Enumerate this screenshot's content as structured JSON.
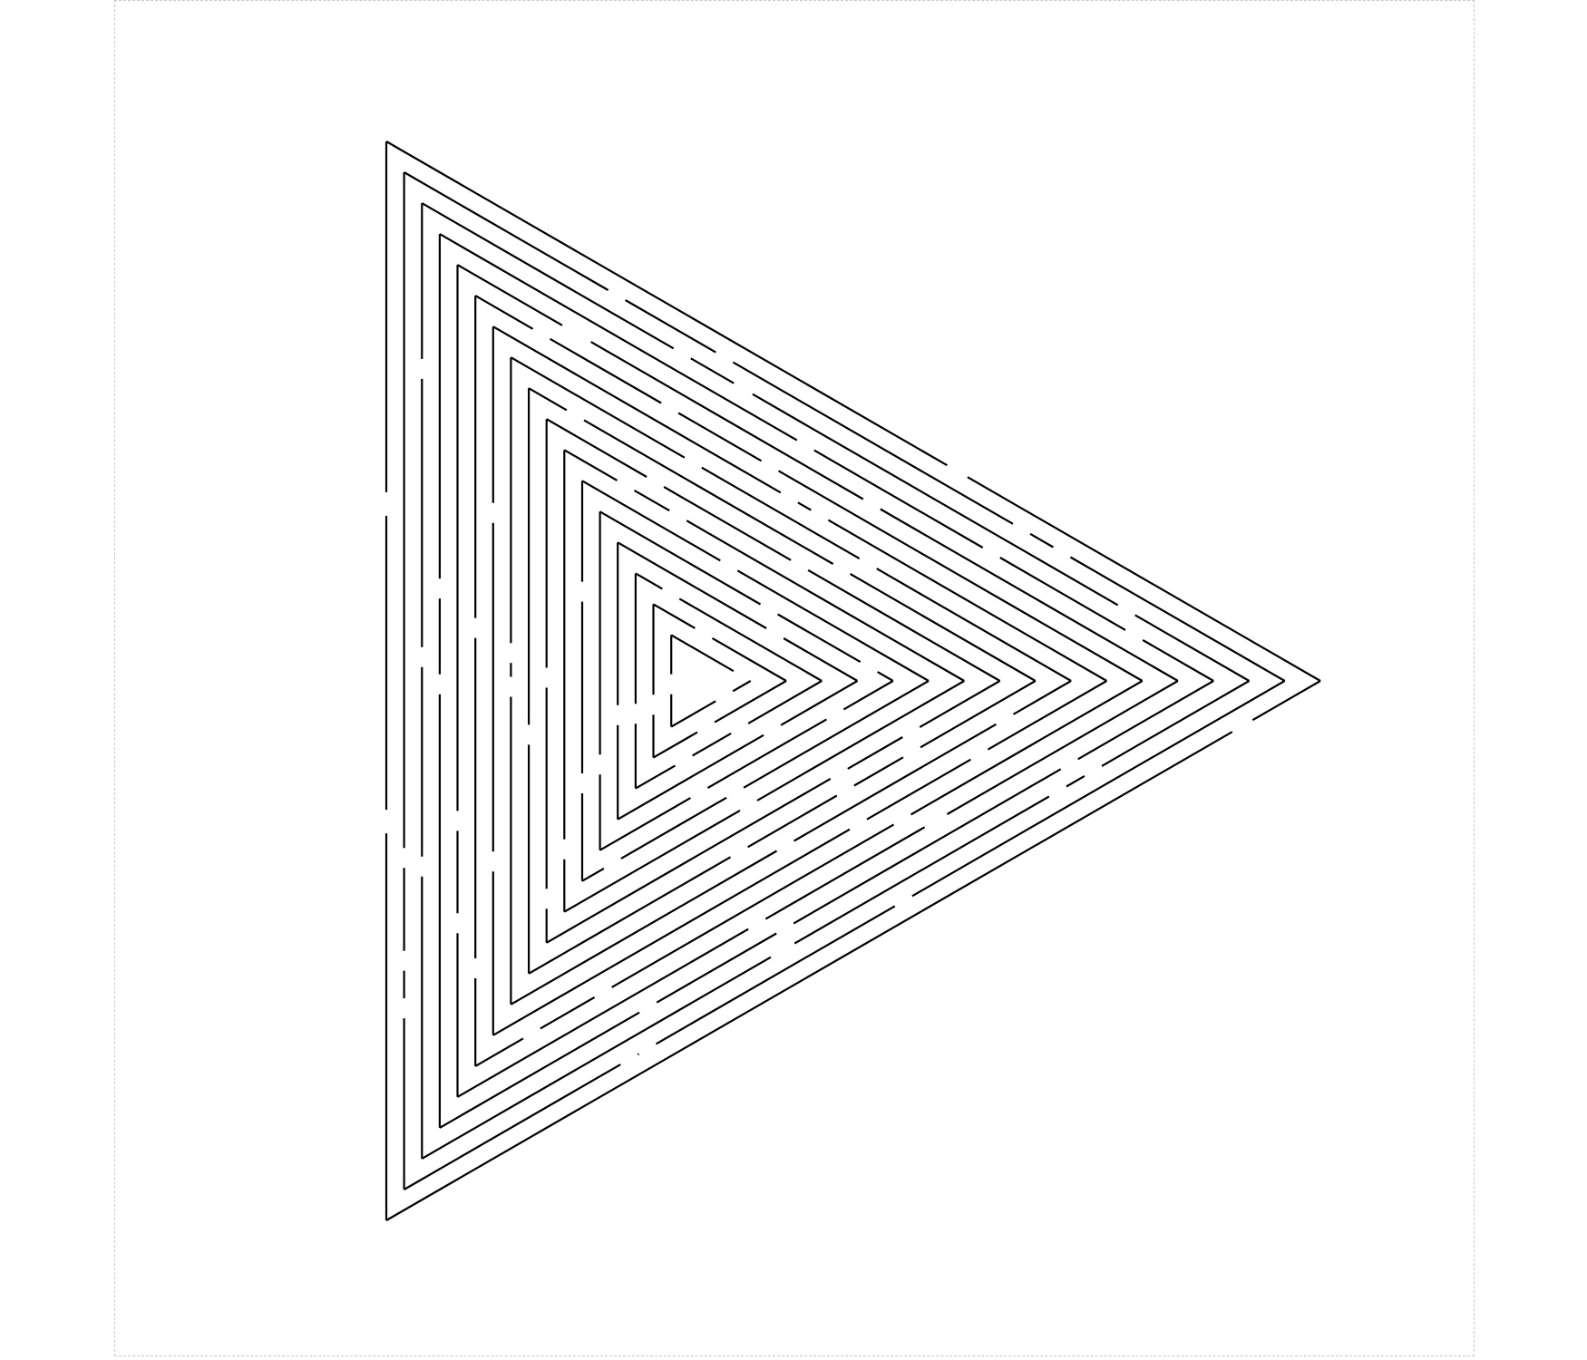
{
  "puzzle": {
    "kind": "triangular-maze",
    "shape": "triangle",
    "orientation": "pointing-right"
  },
  "colors": {
    "background": "#ffffff",
    "wall": "#000000",
    "frame": "#c8c8c8"
  }
}
